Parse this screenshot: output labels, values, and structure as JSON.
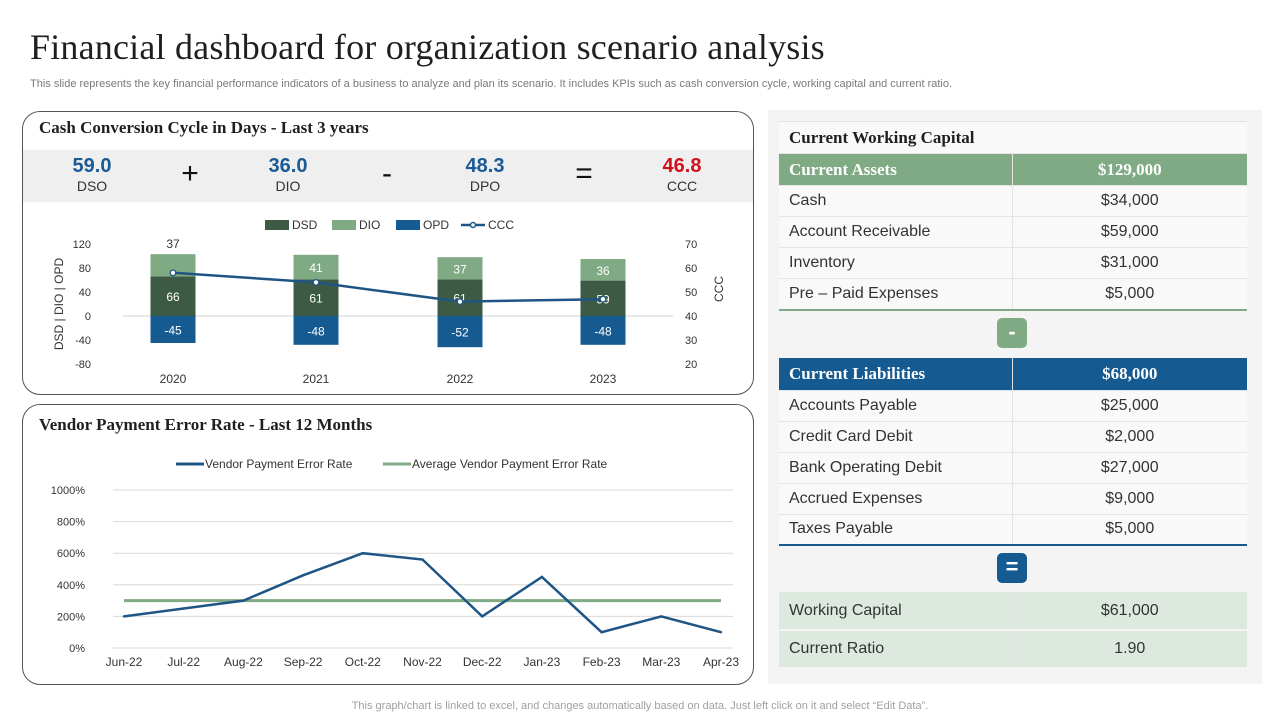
{
  "page": {
    "title": "Financial dashboard for organization scenario analysis",
    "subtitle": "This slide represents the key financial performance indicators of a business to analyze and plan its scenario. It includes KPIs such as cash conversion cycle, working capital and current ratio.",
    "footer": "This graph/chart is linked to excel,  and changes automatically based on data. Just left click on it and select “Edit Data”."
  },
  "ccc_panel": {
    "title": "Cash Conversion Cycle in  Days - Last 3 years",
    "kpis": [
      {
        "value": "59.0",
        "label": "DSO"
      },
      {
        "value": "36.0",
        "label": "DIO"
      },
      {
        "value": "48.3",
        "label": "DPO"
      },
      {
        "value": "46.8",
        "label": "CCC"
      }
    ],
    "operators": [
      "+",
      "-",
      "="
    ]
  },
  "vendor_panel": {
    "title": "Vendor Payment Error Rate - Last 12 Months"
  },
  "working_capital": {
    "caption": "Current Working Capital",
    "assets_header": {
      "label": "Current Assets",
      "value": "$129,000"
    },
    "assets": [
      {
        "label": "Cash",
        "value": "$34,000"
      },
      {
        "label": "Account Receivable",
        "value": "$59,000"
      },
      {
        "label": "Inventory",
        "value": "$31,000"
      },
      {
        "label": "Pre – Paid Expenses",
        "value": "$5,000"
      }
    ],
    "minus_symbol": "-",
    "liabilities_header": {
      "label": "Current  Liabilities",
      "value": "$68,000"
    },
    "liabilities": [
      {
        "label": "Accounts Payable",
        "value": "$25,000"
      },
      {
        "label": "Credit Card Debit",
        "value": "$2,000"
      },
      {
        "label": "Bank Operating Debit",
        "value": "$27,000"
      },
      {
        "label": "Accrued Expenses",
        "value": "$9,000"
      },
      {
        "label": "Taxes Payable",
        "value": "$5,000"
      }
    ],
    "equals_symbol": "=",
    "results": [
      {
        "label": "Working Capital",
        "value": "$61,000"
      },
      {
        "label": "Current Ratio",
        "value": "1.90"
      }
    ]
  },
  "colors": {
    "dsd": "#3d5a45",
    "dio": "#7faa84",
    "opd": "#165a92",
    "ccc": "#1f5585",
    "avg_line": "#7faa84",
    "kpi_value": "#1a5a96",
    "kpi_ccc": "#d0101a"
  },
  "chart_data": [
    {
      "type": "bar",
      "categories": [
        "2020",
        "2021",
        "2022",
        "2023"
      ],
      "series": [
        {
          "name": "DSD",
          "values": [
            66,
            61,
            61,
            59
          ]
        },
        {
          "name": "DIO",
          "values": [
            37,
            41,
            37,
            36
          ]
        },
        {
          "name": "OPD",
          "values": [
            -45,
            -48,
            -52,
            -48
          ]
        },
        {
          "name": "CCC",
          "values": [
            58,
            54,
            46,
            47
          ],
          "axis": "right",
          "type": "line"
        }
      ],
      "ylabel": "DSD | DIO | OPD",
      "ylabel_right": "CCC",
      "ylim": [
        -80,
        120
      ],
      "yticks": [
        "120",
        "80",
        "40",
        "0",
        "-40",
        "-80"
      ],
      "ylim_right": [
        20,
        70
      ],
      "yticks_right": [
        "70",
        "60",
        "50",
        "40",
        "30",
        "20"
      ],
      "data_labels": {
        "DSD": [
          "66",
          "61",
          "61",
          "59"
        ],
        "DIO": [
          "37",
          "41",
          "37",
          "36"
        ],
        "OPD": [
          "-45",
          "-48",
          "-52",
          "-48"
        ]
      },
      "stacked": true,
      "legend": "top"
    },
    {
      "type": "line",
      "categories": [
        "Jun-22",
        "Jul-22",
        "Aug-22",
        "Sep-22",
        "Oct-22",
        "Nov-22",
        "Dec-22",
        "Jan-23",
        "Feb-23",
        "Mar-23",
        "Apr-23"
      ],
      "series": [
        {
          "name": "Vendor Payment Error Rate",
          "values": [
            200,
            250,
            300,
            460,
            600,
            560,
            200,
            450,
            100,
            200,
            100
          ]
        },
        {
          "name": "Average Vendor Payment Error Rate",
          "values": [
            300,
            300,
            300,
            300,
            300,
            300,
            300,
            300,
            300,
            300,
            300
          ]
        }
      ],
      "yticks": [
        "1000%",
        "800%",
        "600%",
        "400%",
        "200%",
        "0%"
      ],
      "ylim": [
        0,
        1000
      ],
      "grid": true,
      "legend": "top"
    }
  ]
}
